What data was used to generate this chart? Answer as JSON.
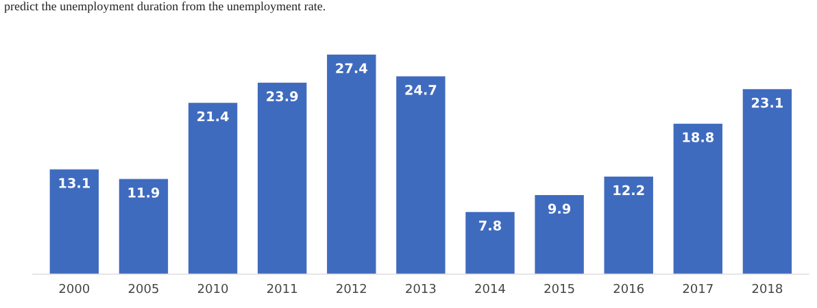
{
  "chart_data": {
    "type": "bar",
    "categories": [
      "2000",
      "2005",
      "2010",
      "2011",
      "2012",
      "2013",
      "2014",
      "2015",
      "2016",
      "2017",
      "2018"
    ],
    "values": [
      13.1,
      11.9,
      21.4,
      23.9,
      27.4,
      24.7,
      7.8,
      9.9,
      12.2,
      18.8,
      23.1
    ],
    "color": "#3f6bbf",
    "data_labels": true,
    "annotations": [
      "predict the unemployment duration from the unemployment rate."
    ]
  }
}
